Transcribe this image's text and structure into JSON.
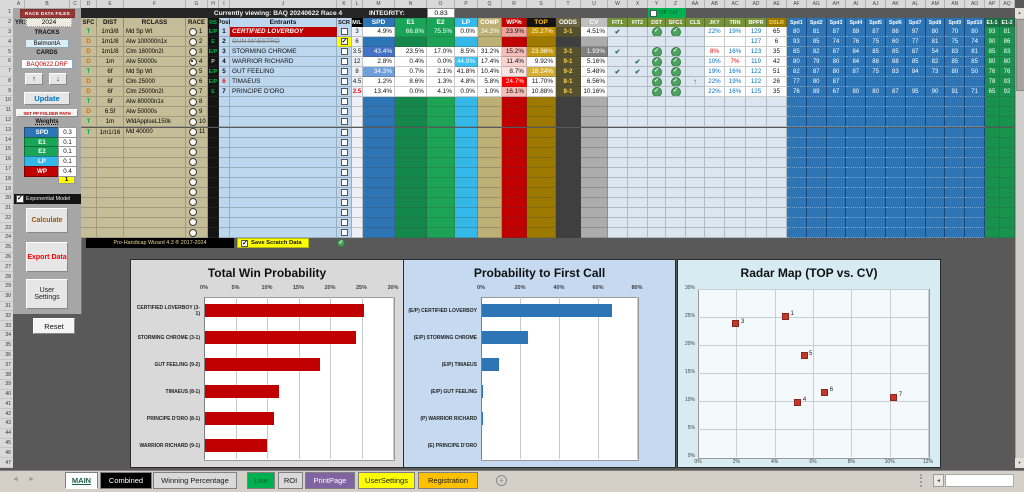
{
  "left_panel": {
    "title": "RACE DATA FILES",
    "yr_label": "YR:",
    "yr_value": "2024",
    "tracks_label": "TRACKS",
    "tracks_value": "BelmontA",
    "cards_label": "CARDS",
    "cards_value": "BAQ0622.DRF",
    "up_button": "↑",
    "down_button": "↓",
    "update_button": "Update",
    "set_pp_button": "SET PP FOLDER PATH",
    "weights_label": "Weights",
    "weights": [
      {
        "label": "SPD",
        "value": "0.3",
        "color": "#2E75B6"
      },
      {
        "label": "E1",
        "value": "0.1",
        "color": "#18A558"
      },
      {
        "label": "E2",
        "value": "0.1",
        "color": "#18A558"
      },
      {
        "label": "LP",
        "value": "0.1",
        "color": "#33B8E8"
      },
      {
        "label": "WP",
        "value": "0.4",
        "color": "#C00000"
      }
    ],
    "weights_total": "1",
    "exp_model_label": "Exponential Model",
    "exp_model_checked": true,
    "calculate_button": "Calculate",
    "export_button": "Export Data",
    "user_settings_button": "User Settings",
    "reset_button": "Reset"
  },
  "status": {
    "viewing": "Currently viewing: BAQ 20240622 Race 4",
    "integrity_label": "INTEGRITY:",
    "integrity_value": "0.83",
    "off_turf_label": "Off Turf",
    "wizard_credit": "Pro-Handicap Wizard 4.3 ® 2017-2024",
    "save_scratch_label": "Save Scratch Data"
  },
  "grid": {
    "headers": {
      "sfc": "SFC",
      "dist": "DIST",
      "rclass": "RCLASS",
      "race": "RACE",
      "rs": "RS",
      "post": "Post",
      "entrants": "Entrants",
      "scr": "SCR",
      "ml": "M/L",
      "spd": "SPD",
      "e1": "E1",
      "e2": "E2",
      "lp": "LP",
      "comp": "COMP",
      "wp": "WP%",
      "top": "TOP",
      "odds": "ODDS",
      "cv": "CV",
      "fit1": "FIT1",
      "fit2": "FIT2",
      "dst": "DST",
      "sfc1": "SFC1",
      "cls": "CLS",
      "jky": "JKY",
      "trn": "TRN",
      "bppr": "BPPR",
      "dslr": "DSLR",
      "spd_n": [
        "Spd1",
        "Spd2",
        "Spd3",
        "Spd4",
        "Spd5",
        "Spd6",
        "Spd7",
        "Spd8",
        "Spd9",
        "Spd10"
      ],
      "e1_1": "E1-1",
      "e1_2": "E1-2"
    },
    "selected_race": "4",
    "races": [
      {
        "no": "1",
        "sfc": "T",
        "dist": "1m3/8",
        "rclass": "Md Sp Wt"
      },
      {
        "no": "2",
        "sfc": "D",
        "dist": "1m1/8",
        "rclass": "Alw 100000n1x"
      },
      {
        "no": "3",
        "sfc": "D",
        "dist": "1m1/8",
        "rclass": "Clm 16000n2l"
      },
      {
        "no": "4",
        "sfc": "D",
        "dist": "1m",
        "rclass": "Alw 50000s"
      },
      {
        "no": "5",
        "sfc": "T",
        "dist": "6f",
        "rclass": "Md Sp Wt"
      },
      {
        "no": "6",
        "sfc": "D",
        "dist": "6f",
        "rclass": "Clm 25000"
      },
      {
        "no": "7",
        "sfc": "D",
        "dist": "6f",
        "rclass": "Clm 25000n2l"
      },
      {
        "no": "8",
        "sfc": "T",
        "dist": "6f",
        "rclass": "Alw 80000n1x"
      },
      {
        "no": "9",
        "sfc": "D",
        "dist": "6.5f",
        "rclass": "Alw 50000s"
      },
      {
        "no": "10",
        "sfc": "T",
        "dist": "1m",
        "rclass": "WldApplseL150k"
      },
      {
        "no": "11",
        "sfc": "T",
        "dist": "1m1/16",
        "rclass": "Md 40000"
      }
    ],
    "entrants": [
      {
        "post": "1",
        "rs": "E/P",
        "name": "CERTIFIED LOVERBOY",
        "top_pick": true,
        "scratched": false,
        "ml": "3",
        "spd": [
          "4.9%"
        ],
        "e1": [
          "66.8%",
          "#18A558",
          "#FFFFFF"
        ],
        "e2": [
          "75.5%",
          "#18A558",
          "#FFFFFF"
        ],
        "lp": [
          "0.0%"
        ],
        "comp": [
          "34.2%",
          "#BDB076",
          "#FFFFFF"
        ],
        "wp": [
          "23.9%",
          "#F2A49C"
        ],
        "top": [
          "25.27%",
          "#BF8F00",
          "#FFFFFF"
        ],
        "odds": "3-1",
        "cv": [
          "4.51%"
        ],
        "fit1": true,
        "fit2": false,
        "dst": true,
        "sfc1": true,
        "cls": false,
        "jky": [
          "22%",
          "#0070C0"
        ],
        "trn": [
          "19%",
          "#0070C0"
        ],
        "bppr": "129",
        "dslr": "65",
        "spds": [
          "80",
          "81",
          "87",
          "89",
          "87",
          "86",
          "97",
          "80",
          "70",
          "80"
        ],
        "e1_1": "93",
        "e1_2": "81"
      },
      {
        "post": "2",
        "rs": "E",
        "name": "GUN MAESTRO",
        "top_pick": false,
        "scratched": true,
        "ml": "6",
        "spd": null,
        "e1": null,
        "e2": null,
        "lp": null,
        "comp": null,
        "wp": null,
        "top": null,
        "odds": null,
        "cv": null,
        "fit1": false,
        "fit2": false,
        "dst": false,
        "sfc1": false,
        "cls": false,
        "jky": null,
        "trn": null,
        "bppr": "127",
        "dslr": "6",
        "spds": [
          "93",
          "85",
          "74",
          "76",
          "75",
          "60",
          "77",
          "81",
          "75",
          "74"
        ],
        "e1_1": "90",
        "e1_2": "86"
      },
      {
        "post": "3",
        "rs": "E/P",
        "name": "STORMING CHROME",
        "top_pick": false,
        "scratched": false,
        "ml": "3.5",
        "spd": [
          "43.4%",
          "#4472C4",
          "#FFFFFF"
        ],
        "e1": [
          "23.5%"
        ],
        "e2": [
          "17.0%"
        ],
        "lp": [
          "8.5%"
        ],
        "comp": [
          "31.2%"
        ],
        "wp": [
          "15.2%",
          "#F5BEB8"
        ],
        "top": [
          "23.98%",
          "#C49B10",
          "#FFFFFF"
        ],
        "odds": "3-1",
        "cv": [
          "1.93%",
          "#808080",
          "#FFFFFF"
        ],
        "fit1": true,
        "fit2": false,
        "dst": true,
        "sfc1": true,
        "cls": false,
        "jky": [
          "8%",
          "#FF0000"
        ],
        "trn": [
          "16%",
          "#0070C0"
        ],
        "bppr": "123",
        "dslr": "35",
        "spds": [
          "85",
          "82",
          "87",
          "84",
          "85",
          "85",
          "87",
          "54",
          "83",
          "81"
        ],
        "e1_1": "85",
        "e1_2": "83"
      },
      {
        "post": "4",
        "rs": "P",
        "name": "WARRIOR RICHARD",
        "top_pick": false,
        "scratched": false,
        "ml": "12",
        "spd": [
          "2.8%"
        ],
        "e1": [
          "0.4%"
        ],
        "e2": [
          "0.0%"
        ],
        "lp": [
          "44.9%",
          "#3FC1F0",
          "#FFFFFF"
        ],
        "comp": [
          "17.4%"
        ],
        "wp": [
          "11.4%",
          "#FAD3CF"
        ],
        "top": [
          "9.92%"
        ],
        "odds": "9-1",
        "cv": [
          "5.16%"
        ],
        "fit1": false,
        "fit2": true,
        "dst": true,
        "sfc1": true,
        "cls": false,
        "jky": [
          "10%",
          "#0070C0"
        ],
        "trn": [
          "7%",
          "#FF0000"
        ],
        "bppr": "119",
        "dslr": "42",
        "spds": [
          "80",
          "79",
          "80",
          "84",
          "88",
          "88",
          "85",
          "82",
          "85",
          "85"
        ],
        "e1_1": "80",
        "e1_2": "80"
      },
      {
        "post": "5",
        "rs": "E/P",
        "name": "GUT FEELING",
        "top_pick": false,
        "scratched": false,
        "ml": "8",
        "spd": [
          "34.3%",
          "#6FA0DC",
          "#FFFFFF"
        ],
        "e1": [
          "0.7%"
        ],
        "e2": [
          "2.1%"
        ],
        "lp": [
          "41.8%"
        ],
        "comp": [
          "10.4%"
        ],
        "wp": [
          "8.7%",
          "#FCE4E2"
        ],
        "top": [
          "18.24%",
          "#D4AF37",
          "#FFFFFF"
        ],
        "odds": "9-2",
        "cv": [
          "5.48%"
        ],
        "fit1": true,
        "fit2": true,
        "dst": true,
        "sfc1": true,
        "cls": false,
        "jky": [
          "19%",
          "#0070C0"
        ],
        "trn": [
          "16%",
          "#0070C0"
        ],
        "bppr": "122",
        "dslr": "51",
        "spds": [
          "82",
          "87",
          "80",
          "87",
          "75",
          "83",
          "84",
          "73",
          "80",
          "50"
        ],
        "e1_1": "76",
        "e1_2": "76"
      },
      {
        "post": "6",
        "post_red": true,
        "rs": "E/P",
        "name": "TIMAEUS",
        "top_pick": false,
        "scratched": false,
        "ml": "4.5",
        "spd": [
          "1.2%"
        ],
        "e1": [
          "8.6%"
        ],
        "e2": [
          "1.3%"
        ],
        "lp": [
          "4.8%"
        ],
        "comp": [
          "5.8%"
        ],
        "wp": [
          "24.7%",
          "#FF0000",
          "#FFFFFF"
        ],
        "top": [
          "11.70%"
        ],
        "odds": "8-1",
        "cv": [
          "6.56%"
        ],
        "fit1": false,
        "fit2": false,
        "dst": true,
        "sfc1": true,
        "cls": true,
        "jky": [
          "22%",
          "#0070C0"
        ],
        "trn": [
          "19%",
          "#0070C0"
        ],
        "bppr": "122",
        "dslr": "26",
        "spds": [
          "77",
          "80",
          "87",
          "",
          "",
          "",
          "",
          "",
          "",
          ""
        ],
        "e1_1": "78",
        "e1_2": "93"
      },
      {
        "post": "7",
        "rs": "E",
        "name": "PRINCIPE D'ORO",
        "top_pick": false,
        "scratched": false,
        "ml": "2.5",
        "ml_red": true,
        "spd": [
          "13.4%"
        ],
        "e1": [
          "0.0%"
        ],
        "e2": [
          "4.1%"
        ],
        "lp": [
          "0.0%"
        ],
        "comp": [
          "1.0%"
        ],
        "wp": [
          "16.1%",
          "#F5BEB8"
        ],
        "top": [
          "10.88%"
        ],
        "odds": "8-1",
        "cv": [
          "10.16%"
        ],
        "fit1": false,
        "fit2": false,
        "dst": true,
        "sfc1": true,
        "cls": false,
        "jky": [
          "22%",
          "#0070C0"
        ],
        "trn": [
          "16%",
          "#0070C0"
        ],
        "bppr": "125",
        "dslr": "35",
        "spds": [
          "76",
          "89",
          "67",
          "80",
          "80",
          "87",
          "95",
          "90",
          "91",
          "71"
        ],
        "e1_1": "65",
        "e1_2": "92"
      }
    ]
  },
  "chart_data": [
    {
      "type": "bar",
      "title": "Total Win Probability",
      "categories": [
        "CERTIFIED LOVERBOY (3-1)",
        "STORMING CHROME (3-1)",
        "GUT FEELING (9-2)",
        "TIMAEUS (8-1)",
        "PRINCIPE D'ORO (8-1)",
        "WARRIOR RICHARD (9-1)"
      ],
      "values": [
        25.27,
        23.98,
        18.24,
        11.7,
        10.88,
        9.92
      ],
      "xlim": [
        0,
        30
      ],
      "xticks": [
        "0%",
        "5%",
        "10%",
        "15%",
        "20%",
        "25%",
        "30%"
      ],
      "bar_color": "#C00000",
      "panel_color": "#D9D9D9"
    },
    {
      "type": "bar",
      "title": "Probability to First Call",
      "categories": [
        "(E/P) CERTIFIED LOVERBOY",
        "(E/P) STORMING CHROME",
        "(E/P) TIMAEUS",
        "(E/P) GUT FEELING",
        "(P) WARRIOR RICHARD",
        "(E) PRINCIPE D'ORO"
      ],
      "values": [
        66.8,
        23.5,
        8.6,
        0.7,
        0.4,
        0
      ],
      "xlim": [
        0,
        80
      ],
      "xticks": [
        "0%",
        "20%",
        "40%",
        "60%",
        "80%"
      ],
      "bar_color": "#2E75B6",
      "panel_color": "#C5D9F1"
    },
    {
      "type": "scatter",
      "title": "Radar Map (TOP vs. CV)",
      "points": [
        {
          "label": "1",
          "x": 4.51,
          "y": 25.27
        },
        {
          "label": "3",
          "x": 1.93,
          "y": 23.98
        },
        {
          "label": "4",
          "x": 5.16,
          "y": 9.92
        },
        {
          "label": "5",
          "x": 5.48,
          "y": 18.24
        },
        {
          "label": "6",
          "x": 6.56,
          "y": 11.7
        },
        {
          "label": "7",
          "x": 10.16,
          "y": 10.88
        }
      ],
      "xlim": [
        0,
        12
      ],
      "ylim": [
        0,
        30
      ],
      "xticks": [
        "0%",
        "2%",
        "4%",
        "6%",
        "8%",
        "10%",
        "12%"
      ],
      "yticks": [
        "0%",
        "5%",
        "10%",
        "15%",
        "20%",
        "25%",
        "30%"
      ],
      "point_color": "#C0392B",
      "panel_color": "#D6EBF2"
    }
  ],
  "tabs": {
    "items": [
      {
        "label": "MAIN",
        "bg": "#FFFFFF",
        "fg": "#1C5E46",
        "active": true
      },
      {
        "label": "Combined",
        "bg": "#000000",
        "fg": "#FFFFFF"
      },
      {
        "label": "Winning Percentage",
        "bg": "#D9D9D9",
        "fg": "#1A1A1A"
      },
      {
        "label": "Live",
        "bg": "#00B050",
        "fg": "#063"
      },
      {
        "label": "ROI",
        "bg": "#D9D9D9",
        "fg": "#1A1A1A"
      },
      {
        "label": "PrintPage",
        "bg": "#8064A2",
        "fg": "#FFFFFF"
      },
      {
        "label": "UserSettings",
        "bg": "#FFFF00",
        "fg": "#1A1A1A"
      },
      {
        "label": "Registration",
        "bg": "#FFC000",
        "fg": "#1A1A1A"
      }
    ]
  }
}
